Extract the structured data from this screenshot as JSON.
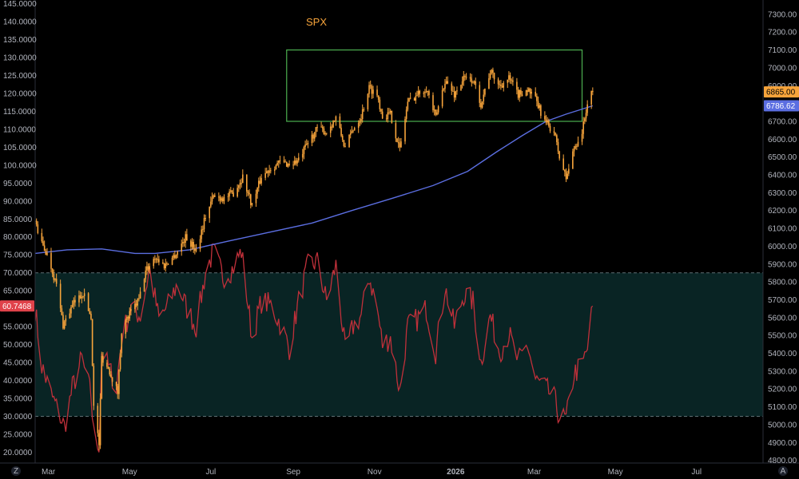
{
  "chart_data": {
    "type": "line",
    "title": "SPX",
    "colors": {
      "price": "#f7a43b",
      "moving_average": "#5b6ee1",
      "oscillator": "#c0303a",
      "box": "#4caf50",
      "band_fill": "#0b2a2a",
      "label_osc": "#e0424a",
      "label_ma": "#5b6ee1",
      "label_price": "#f7a43b"
    },
    "x_axis": {
      "ticks": [
        {
          "label": "Mar",
          "date": "2025-03-01"
        },
        {
          "label": "May",
          "date": "2025-05-01"
        },
        {
          "label": "Jul",
          "date": "2025-07-01"
        },
        {
          "label": "Sep",
          "date": "2025-09-01"
        },
        {
          "label": "Nov",
          "date": "2025-11-01"
        },
        {
          "label": "2026",
          "date": "2026-01-01"
        },
        {
          "label": "Mar",
          "date": "2026-03-01"
        },
        {
          "label": "May",
          "date": "2026-05-01"
        },
        {
          "label": "Jul",
          "date": "2026-07-01"
        }
      ],
      "range": [
        "2025-02-19",
        "2026-08-20"
      ]
    },
    "left_axis": {
      "range": [
        17,
        146
      ],
      "ticks": [
        "145.0000",
        "140.0000",
        "135.0000",
        "130.0000",
        "125.0000",
        "120.0000",
        "115.0000",
        "110.0000",
        "105.0000",
        "100.0000",
        "95.0000",
        "90.0000",
        "85.0000",
        "80.0000",
        "75.0000",
        "70.0000",
        "65.0000",
        "60.0000",
        "55.0000",
        "50.0000",
        "45.0000",
        "40.0000",
        "35.0000",
        "30.0000",
        "25.0000",
        "20.0000"
      ],
      "tick_values": [
        145,
        140,
        135,
        130,
        125,
        120,
        115,
        110,
        105,
        100,
        95,
        90,
        85,
        80,
        75,
        70,
        65,
        60,
        55,
        50,
        45,
        40,
        35,
        30,
        25,
        20
      ]
    },
    "right_axis": {
      "range": [
        4785,
        7380
      ],
      "ticks": [
        "7300.00",
        "7200.00",
        "7100.00",
        "7000.00",
        "6900.00",
        "6800.00",
        "6700.00",
        "6600.00",
        "6500.00",
        "6400.00",
        "6300.00",
        "6200.00",
        "6100.00",
        "6000.00",
        "5900.00",
        "5800.00",
        "5700.00",
        "5600.00",
        "5500.00",
        "5400.00",
        "5300.00",
        "5200.00",
        "5100.00",
        "5000.00",
        "4900.00",
        "4800.00"
      ],
      "tick_values": [
        7300,
        7200,
        7100,
        7000,
        6900,
        6800,
        6700,
        6600,
        6500,
        6400,
        6300,
        6200,
        6100,
        6000,
        5900,
        5800,
        5700,
        5600,
        5500,
        5400,
        5300,
        5200,
        5100,
        5000,
        4900,
        4800
      ]
    },
    "labels": {
      "oscillator_last": "60.7468",
      "price_last": "6865.00",
      "ma_last": "6786.62"
    },
    "band": {
      "upper": 70,
      "lower": 30
    },
    "box": {
      "x0": "2025-08-27",
      "x1": "2026-04-06",
      "y0": 6700,
      "y1": 7100
    },
    "price_series": {
      "name": "SPX",
      "points": [
        [
          "2025-02-19",
          6140
        ],
        [
          "2025-02-24",
          6010
        ],
        [
          "2025-03-01",
          5940
        ],
        [
          "2025-03-07",
          5780
        ],
        [
          "2025-03-12",
          5560
        ],
        [
          "2025-03-20",
          5680
        ],
        [
          "2025-03-27",
          5740
        ],
        [
          "2025-04-02",
          5600
        ],
        [
          "2025-04-04",
          5100
        ],
        [
          "2025-04-08",
          4890
        ],
        [
          "2025-04-10",
          5380
        ],
        [
          "2025-04-16",
          5300
        ],
        [
          "2025-04-22",
          5180
        ],
        [
          "2025-04-25",
          5530
        ],
        [
          "2025-05-01",
          5620
        ],
        [
          "2025-05-08",
          5700
        ],
        [
          "2025-05-13",
          5860
        ],
        [
          "2025-05-20",
          5940
        ],
        [
          "2025-05-27",
          5890
        ],
        [
          "2025-06-05",
          5960
        ],
        [
          "2025-06-12",
          6050
        ],
        [
          "2025-06-20",
          5980
        ],
        [
          "2025-06-27",
          6170
        ],
        [
          "2025-07-03",
          6280
        ],
        [
          "2025-07-11",
          6270
        ],
        [
          "2025-07-18",
          6300
        ],
        [
          "2025-07-25",
          6390
        ],
        [
          "2025-08-01",
          6230
        ],
        [
          "2025-08-08",
          6390
        ],
        [
          "2025-08-15",
          6440
        ],
        [
          "2025-08-22",
          6470
        ],
        [
          "2025-08-29",
          6460
        ],
        [
          "2025-09-05",
          6480
        ],
        [
          "2025-09-12",
          6580
        ],
        [
          "2025-09-19",
          6660
        ],
        [
          "2025-09-26",
          6640
        ],
        [
          "2025-10-03",
          6720
        ],
        [
          "2025-10-10",
          6550
        ],
        [
          "2025-10-16",
          6660
        ],
        [
          "2025-10-22",
          6730
        ],
        [
          "2025-10-28",
          6890
        ],
        [
          "2025-11-03",
          6850
        ],
        [
          "2025-11-07",
          6730
        ],
        [
          "2025-11-13",
          6740
        ],
        [
          "2025-11-20",
          6540
        ],
        [
          "2025-11-26",
          6810
        ],
        [
          "2025-12-03",
          6850
        ],
        [
          "2025-12-10",
          6890
        ],
        [
          "2025-12-17",
          6720
        ],
        [
          "2025-12-24",
          6930
        ],
        [
          "2025-12-31",
          6850
        ],
        [
          "2026-01-07",
          6940
        ],
        [
          "2026-01-14",
          6930
        ],
        [
          "2026-01-20",
          6800
        ],
        [
          "2026-01-27",
          6980
        ],
        [
          "2026-02-03",
          6900
        ],
        [
          "2026-02-10",
          6940
        ],
        [
          "2026-02-17",
          6850
        ],
        [
          "2026-02-24",
          6880
        ],
        [
          "2026-03-02",
          6820
        ],
        [
          "2026-03-09",
          6700
        ],
        [
          "2026-03-16",
          6640
        ],
        [
          "2026-03-20",
          6500
        ],
        [
          "2026-03-25",
          6380
        ],
        [
          "2026-03-31",
          6550
        ],
        [
          "2026-04-06",
          6640
        ],
        [
          "2026-04-10",
          6800
        ],
        [
          "2026-04-14",
          6865
        ]
      ]
    },
    "ma_series": {
      "name": "",
      "points": [
        [
          "2025-02-19",
          5960
        ],
        [
          "2025-03-15",
          5980
        ],
        [
          "2025-04-10",
          5985
        ],
        [
          "2025-05-05",
          5960
        ],
        [
          "2025-05-20",
          5960
        ],
        [
          "2025-06-15",
          5980
        ],
        [
          "2025-07-15",
          6030
        ],
        [
          "2025-08-15",
          6080
        ],
        [
          "2025-09-15",
          6130
        ],
        [
          "2025-10-15",
          6200
        ],
        [
          "2025-11-15",
          6270
        ],
        [
          "2025-12-15",
          6340
        ],
        [
          "2026-01-10",
          6420
        ],
        [
          "2026-02-01",
          6530
        ],
        [
          "2026-02-20",
          6620
        ],
        [
          "2026-03-10",
          6700
        ],
        [
          "2026-03-25",
          6740
        ],
        [
          "2026-04-14",
          6787
        ]
      ]
    },
    "oscillator_series": {
      "name": "",
      "points": [
        [
          "2025-02-19",
          60
        ],
        [
          "2025-02-24",
          44
        ],
        [
          "2025-03-03",
          36
        ],
        [
          "2025-03-10",
          30
        ],
        [
          "2025-03-13",
          27
        ],
        [
          "2025-03-19",
          38
        ],
        [
          "2025-03-26",
          46
        ],
        [
          "2025-04-02",
          36
        ],
        [
          "2025-04-04",
          25
        ],
        [
          "2025-04-08",
          21
        ],
        [
          "2025-04-10",
          48
        ],
        [
          "2025-04-16",
          43
        ],
        [
          "2025-04-21",
          38
        ],
        [
          "2025-04-25",
          52
        ],
        [
          "2025-05-02",
          60
        ],
        [
          "2025-05-09",
          58
        ],
        [
          "2025-05-16",
          71
        ],
        [
          "2025-05-23",
          57
        ],
        [
          "2025-05-30",
          61
        ],
        [
          "2025-06-06",
          67
        ],
        [
          "2025-06-13",
          60
        ],
        [
          "2025-06-20",
          55
        ],
        [
          "2025-06-27",
          70
        ],
        [
          "2025-07-03",
          76
        ],
        [
          "2025-07-10",
          69
        ],
        [
          "2025-07-17",
          71
        ],
        [
          "2025-07-24",
          76
        ],
        [
          "2025-08-01",
          52
        ],
        [
          "2025-08-08",
          62
        ],
        [
          "2025-08-15",
          61
        ],
        [
          "2025-08-22",
          56
        ],
        [
          "2025-08-29",
          49
        ],
        [
          "2025-09-05",
          62
        ],
        [
          "2025-09-12",
          72
        ],
        [
          "2025-09-19",
          73
        ],
        [
          "2025-09-26",
          62
        ],
        [
          "2025-10-03",
          72
        ],
        [
          "2025-10-10",
          48
        ],
        [
          "2025-10-16",
          55
        ],
        [
          "2025-10-22",
          58
        ],
        [
          "2025-10-28",
          69
        ],
        [
          "2025-11-03",
          60
        ],
        [
          "2025-11-07",
          50
        ],
        [
          "2025-11-13",
          52
        ],
        [
          "2025-11-20",
          37
        ],
        [
          "2025-11-26",
          55
        ],
        [
          "2025-12-03",
          57
        ],
        [
          "2025-12-10",
          60
        ],
        [
          "2025-12-17",
          48
        ],
        [
          "2025-12-24",
          66
        ],
        [
          "2025-12-31",
          55
        ],
        [
          "2026-01-07",
          64
        ],
        [
          "2026-01-14",
          62
        ],
        [
          "2026-01-20",
          45
        ],
        [
          "2026-01-27",
          58
        ],
        [
          "2026-02-03",
          48
        ],
        [
          "2026-02-10",
          53
        ],
        [
          "2026-02-17",
          45
        ],
        [
          "2026-02-24",
          50
        ],
        [
          "2026-03-02",
          40
        ],
        [
          "2026-03-09",
          38
        ],
        [
          "2026-03-16",
          35
        ],
        [
          "2026-03-20",
          30
        ],
        [
          "2026-03-25",
          29
        ],
        [
          "2026-03-31",
          42
        ],
        [
          "2026-04-06",
          44
        ],
        [
          "2026-04-10",
          49
        ],
        [
          "2026-04-14",
          60.75
        ]
      ]
    },
    "bottom_icons": [
      {
        "name": "zoom-icon",
        "glyph": "Z"
      },
      {
        "name": "auto-scale-icon",
        "glyph": "A"
      }
    ]
  }
}
